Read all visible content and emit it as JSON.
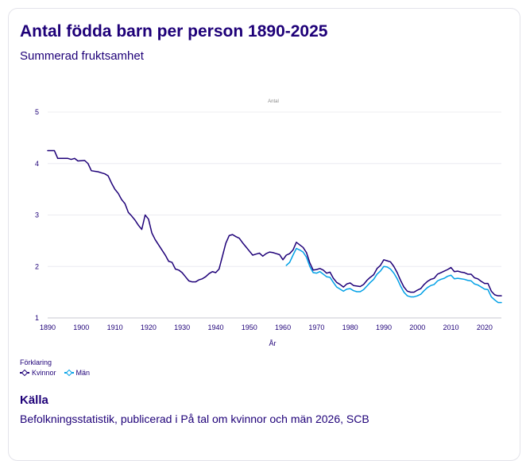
{
  "card": {
    "title": "Antal födda barn per person 1890-2025",
    "subtitle": "Summerad fruktsamhet"
  },
  "chart_data": {
    "type": "line",
    "ylabel": "Antal",
    "xlabel": "År",
    "xlim": [
      1890,
      2025
    ],
    "ylim": [
      1,
      5
    ],
    "xticks": [
      1890,
      1900,
      1910,
      1920,
      1930,
      1940,
      1950,
      1960,
      1970,
      1980,
      1990,
      2000,
      2010,
      2020
    ],
    "yticks": [
      1,
      2,
      3,
      4,
      5
    ],
    "grid": "horizontal",
    "series": [
      {
        "name": "Kvinnor",
        "color": "#1e0078",
        "points": [
          [
            1890,
            4.25
          ],
          [
            1892,
            4.25
          ],
          [
            1893,
            4.1
          ],
          [
            1896,
            4.1
          ],
          [
            1897,
            4.08
          ],
          [
            1898,
            4.1
          ],
          [
            1899,
            4.05
          ],
          [
            1901,
            4.06
          ],
          [
            1902,
            4.0
          ],
          [
            1903,
            3.86
          ],
          [
            1905,
            3.84
          ],
          [
            1906,
            3.82
          ],
          [
            1907,
            3.8
          ],
          [
            1908,
            3.76
          ],
          [
            1909,
            3.62
          ],
          [
            1910,
            3.5
          ],
          [
            1911,
            3.42
          ],
          [
            1912,
            3.3
          ],
          [
            1913,
            3.22
          ],
          [
            1914,
            3.05
          ],
          [
            1915,
            2.98
          ],
          [
            1916,
            2.9
          ],
          [
            1917,
            2.8
          ],
          [
            1918,
            2.72
          ],
          [
            1919,
            3.0
          ],
          [
            1920,
            2.92
          ],
          [
            1921,
            2.65
          ],
          [
            1922,
            2.52
          ],
          [
            1923,
            2.42
          ],
          [
            1924,
            2.32
          ],
          [
            1925,
            2.22
          ],
          [
            1926,
            2.1
          ],
          [
            1927,
            2.08
          ],
          [
            1928,
            1.95
          ],
          [
            1929,
            1.93
          ],
          [
            1930,
            1.88
          ],
          [
            1931,
            1.8
          ],
          [
            1932,
            1.72
          ],
          [
            1933,
            1.7
          ],
          [
            1934,
            1.7
          ],
          [
            1935,
            1.74
          ],
          [
            1936,
            1.76
          ],
          [
            1937,
            1.8
          ],
          [
            1938,
            1.86
          ],
          [
            1939,
            1.9
          ],
          [
            1940,
            1.88
          ],
          [
            1941,
            1.95
          ],
          [
            1942,
            2.2
          ],
          [
            1943,
            2.45
          ],
          [
            1944,
            2.6
          ],
          [
            1945,
            2.62
          ],
          [
            1946,
            2.58
          ],
          [
            1947,
            2.55
          ],
          [
            1948,
            2.46
          ],
          [
            1949,
            2.38
          ],
          [
            1950,
            2.3
          ],
          [
            1951,
            2.22
          ],
          [
            1952,
            2.24
          ],
          [
            1953,
            2.26
          ],
          [
            1954,
            2.2
          ],
          [
            1955,
            2.25
          ],
          [
            1956,
            2.28
          ],
          [
            1957,
            2.27
          ],
          [
            1958,
            2.25
          ],
          [
            1959,
            2.23
          ],
          [
            1960,
            2.13
          ],
          [
            1961,
            2.22
          ],
          [
            1962,
            2.25
          ],
          [
            1963,
            2.32
          ],
          [
            1964,
            2.47
          ],
          [
            1965,
            2.42
          ],
          [
            1966,
            2.37
          ],
          [
            1967,
            2.27
          ],
          [
            1968,
            2.07
          ],
          [
            1969,
            1.93
          ],
          [
            1970,
            1.94
          ],
          [
            1971,
            1.96
          ],
          [
            1972,
            1.93
          ],
          [
            1973,
            1.87
          ],
          [
            1974,
            1.89
          ],
          [
            1975,
            1.77
          ],
          [
            1976,
            1.69
          ],
          [
            1977,
            1.65
          ],
          [
            1978,
            1.6
          ],
          [
            1979,
            1.66
          ],
          [
            1980,
            1.68
          ],
          [
            1981,
            1.63
          ],
          [
            1982,
            1.62
          ],
          [
            1983,
            1.61
          ],
          [
            1984,
            1.65
          ],
          [
            1985,
            1.73
          ],
          [
            1986,
            1.79
          ],
          [
            1987,
            1.84
          ],
          [
            1988,
            1.96
          ],
          [
            1989,
            2.02
          ],
          [
            1990,
            2.13
          ],
          [
            1991,
            2.11
          ],
          [
            1992,
            2.09
          ],
          [
            1993,
            2.0
          ],
          [
            1994,
            1.88
          ],
          [
            1995,
            1.73
          ],
          [
            1996,
            1.6
          ],
          [
            1997,
            1.52
          ],
          [
            1998,
            1.5
          ],
          [
            1999,
            1.5
          ],
          [
            2000,
            1.54
          ],
          [
            2001,
            1.57
          ],
          [
            2002,
            1.65
          ],
          [
            2003,
            1.71
          ],
          [
            2004,
            1.75
          ],
          [
            2005,
            1.77
          ],
          [
            2006,
            1.85
          ],
          [
            2007,
            1.88
          ],
          [
            2008,
            1.91
          ],
          [
            2009,
            1.94
          ],
          [
            2010,
            1.98
          ],
          [
            2011,
            1.9
          ],
          [
            2012,
            1.91
          ],
          [
            2013,
            1.89
          ],
          [
            2014,
            1.88
          ],
          [
            2015,
            1.85
          ],
          [
            2016,
            1.85
          ],
          [
            2017,
            1.78
          ],
          [
            2018,
            1.76
          ],
          [
            2019,
            1.71
          ],
          [
            2020,
            1.67
          ],
          [
            2021,
            1.67
          ],
          [
            2022,
            1.52
          ],
          [
            2023,
            1.45
          ],
          [
            2024,
            1.43
          ],
          [
            2025,
            1.43
          ]
        ]
      },
      {
        "name": "Män",
        "color": "#00a0e6",
        "points": [
          [
            1961,
            2.02
          ],
          [
            1962,
            2.08
          ],
          [
            1963,
            2.22
          ],
          [
            1964,
            2.35
          ],
          [
            1965,
            2.32
          ],
          [
            1966,
            2.28
          ],
          [
            1967,
            2.18
          ],
          [
            1968,
            2.0
          ],
          [
            1969,
            1.88
          ],
          [
            1970,
            1.87
          ],
          [
            1971,
            1.9
          ],
          [
            1972,
            1.85
          ],
          [
            1973,
            1.8
          ],
          [
            1974,
            1.79
          ],
          [
            1975,
            1.69
          ],
          [
            1976,
            1.6
          ],
          [
            1977,
            1.56
          ],
          [
            1978,
            1.52
          ],
          [
            1979,
            1.56
          ],
          [
            1980,
            1.57
          ],
          [
            1981,
            1.53
          ],
          [
            1982,
            1.51
          ],
          [
            1983,
            1.51
          ],
          [
            1984,
            1.55
          ],
          [
            1985,
            1.62
          ],
          [
            1986,
            1.69
          ],
          [
            1987,
            1.75
          ],
          [
            1988,
            1.85
          ],
          [
            1989,
            1.91
          ],
          [
            1990,
            2.0
          ],
          [
            1991,
            1.99
          ],
          [
            1992,
            1.95
          ],
          [
            1993,
            1.87
          ],
          [
            1994,
            1.76
          ],
          [
            1995,
            1.62
          ],
          [
            1996,
            1.5
          ],
          [
            1997,
            1.43
          ],
          [
            1998,
            1.41
          ],
          [
            1999,
            1.41
          ],
          [
            2000,
            1.43
          ],
          [
            2001,
            1.46
          ],
          [
            2002,
            1.53
          ],
          [
            2003,
            1.59
          ],
          [
            2004,
            1.63
          ],
          [
            2005,
            1.65
          ],
          [
            2006,
            1.72
          ],
          [
            2007,
            1.75
          ],
          [
            2008,
            1.77
          ],
          [
            2009,
            1.81
          ],
          [
            2010,
            1.83
          ],
          [
            2011,
            1.76
          ],
          [
            2012,
            1.77
          ],
          [
            2013,
            1.76
          ],
          [
            2014,
            1.75
          ],
          [
            2015,
            1.73
          ],
          [
            2016,
            1.72
          ],
          [
            2017,
            1.66
          ],
          [
            2018,
            1.64
          ],
          [
            2019,
            1.6
          ],
          [
            2020,
            1.56
          ],
          [
            2021,
            1.55
          ],
          [
            2022,
            1.41
          ],
          [
            2023,
            1.35
          ],
          [
            2024,
            1.3
          ],
          [
            2025,
            1.3
          ]
        ]
      }
    ],
    "legend": {
      "title": "Förklaring",
      "position": "bottom-left"
    }
  },
  "source": {
    "title": "Källa",
    "text": "Befolkningsstatistik, publicerad i På tal om kvinnor och män 2026, SCB"
  }
}
